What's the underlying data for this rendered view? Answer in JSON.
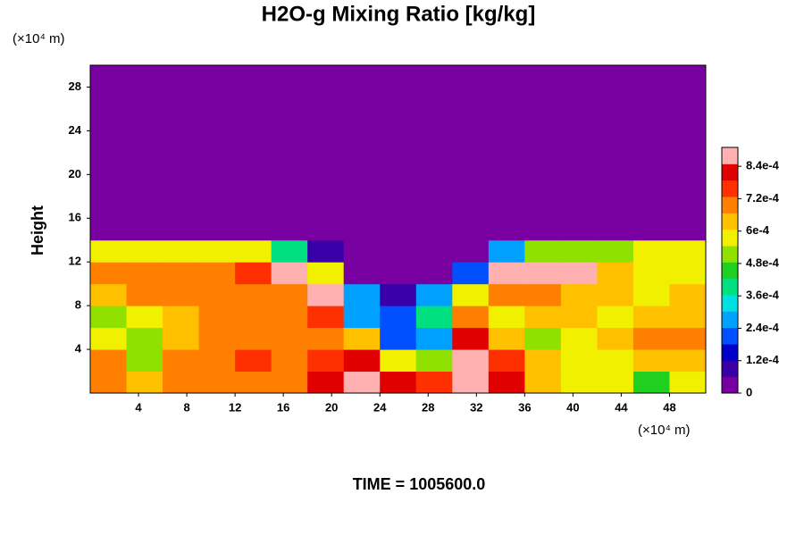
{
  "chart_data": {
    "type": "heatmap",
    "title": "H2O-g Mixing Ratio [kg/kg]",
    "ylabel": "Height",
    "xunit": "(×10⁴ m)",
    "yunit": "(×10⁴ m)",
    "footer": "TIME = 1005600.0",
    "xlim": [
      0,
      51
    ],
    "ylim": [
      0,
      30
    ],
    "xticks": [
      4,
      8,
      12,
      16,
      20,
      24,
      28,
      32,
      36,
      40,
      44,
      48
    ],
    "yticks": [
      4,
      8,
      12,
      16,
      20,
      24,
      28
    ],
    "x": [
      0,
      3,
      6,
      9,
      12,
      15,
      18,
      21,
      24,
      27,
      30,
      33,
      36,
      39,
      42,
      45,
      48,
      51
    ],
    "y": [
      0,
      2,
      4,
      6,
      8,
      10,
      12,
      14,
      16,
      18,
      20,
      22,
      24,
      26,
      28,
      30
    ],
    "z": [
      [
        0.0007,
        0.00065,
        0.0007,
        0.0007,
        0.0007,
        0.0007,
        0.0008,
        0.0009,
        0.0008,
        0.00075,
        0.00085,
        0.0008,
        0.00065,
        0.0006,
        0.00055,
        0.00045,
        0.0006
      ],
      [
        0.0007,
        0.0005,
        0.0007,
        0.0007,
        0.00075,
        0.0007,
        0.00075,
        0.0008,
        0.0006,
        0.0005,
        0.00085,
        0.00075,
        0.00065,
        0.00055,
        0.0006,
        0.00065,
        0.00065
      ],
      [
        0.0006,
        0.0005,
        0.00065,
        0.0007,
        0.0007,
        0.0007,
        0.0007,
        0.00065,
        0.0002,
        0.0003,
        0.0008,
        0.00065,
        0.0005,
        0.0006,
        0.00065,
        0.0007,
        0.0007
      ],
      [
        0.0005,
        0.0006,
        0.00065,
        0.0007,
        0.0007,
        0.0007,
        0.00075,
        0.0003,
        0.0002,
        0.0004,
        0.0007,
        0.0006,
        0.00065,
        0.00065,
        0.0006,
        0.00065,
        0.00065
      ],
      [
        0.00065,
        0.0007,
        0.0007,
        0.0007,
        0.0007,
        0.0007,
        0.0009,
        0.00025,
        0.0001,
        0.00025,
        0.00055,
        0.0007,
        0.0007,
        0.00065,
        0.00065,
        0.0006,
        0.00065
      ],
      [
        0.0007,
        0.0007,
        0.0007,
        0.0007,
        0.00075,
        0.0009,
        0.0006,
        5e-05,
        5e-05,
        5e-05,
        0.0002,
        0.0009,
        0.0009,
        0.0009,
        0.00065,
        0.0006,
        0.0006
      ],
      [
        0.00055,
        0.00055,
        0.00055,
        0.00055,
        0.00055,
        0.0004,
        0.0001,
        0,
        0,
        5e-05,
        5e-05,
        0.0003,
        0.0005,
        0.0005,
        0.0005,
        0.00055,
        0.00055
      ],
      [
        0,
        0,
        0,
        0,
        0,
        0,
        0,
        0,
        0,
        0,
        0,
        0,
        0,
        0,
        0,
        0,
        0
      ],
      [
        0,
        0,
        0,
        0,
        0,
        0,
        0,
        0,
        0,
        0,
        0,
        0,
        0,
        0,
        0,
        0,
        0
      ],
      [
        0,
        0,
        0,
        0,
        0,
        0,
        0,
        0,
        0,
        0,
        0,
        0,
        0,
        0,
        0,
        0,
        0
      ],
      [
        0,
        0,
        0,
        0,
        0,
        0,
        0,
        0,
        0,
        0,
        0,
        0,
        0,
        0,
        0,
        0,
        0
      ],
      [
        0,
        0,
        0,
        0,
        0,
        0,
        0,
        0,
        0,
        0,
        0,
        0,
        0,
        0,
        0,
        0,
        0
      ],
      [
        0,
        0,
        0,
        0,
        0,
        0,
        0,
        0,
        0,
        0,
        0,
        0,
        0,
        0,
        0,
        0,
        0
      ],
      [
        0,
        0,
        0,
        0,
        0,
        0,
        0,
        0,
        0,
        0,
        0,
        0,
        0,
        0,
        0,
        0,
        0
      ],
      [
        0,
        0,
        0,
        0,
        0,
        0,
        0,
        0,
        0,
        0,
        0,
        0,
        0,
        0,
        0,
        0,
        0
      ]
    ],
    "clim": [
      0,
      0.00091
    ],
    "cticks": [
      0,
      {
        "value": 0.00012,
        "label": "1.2e-4"
      },
      {
        "value": 0.00024,
        "label": "2.4e-4"
      },
      {
        "value": 0.00036,
        "label": "3.6e-4"
      },
      {
        "value": 0.00048,
        "label": "4.8e-4"
      },
      {
        "value": 0.0006,
        "label": "6e-4"
      },
      {
        "value": 0.00072,
        "label": "7.2e-4"
      },
      {
        "value": 0.00084,
        "label": "8.4e-4"
      }
    ],
    "colormap": [
      "#7800a0",
      "#3a00a8",
      "#0000c8",
      "#0050ff",
      "#00a0ff",
      "#00e0e0",
      "#00e080",
      "#20d020",
      "#90e000",
      "#f0f000",
      "#ffc000",
      "#ff8000",
      "#ff3000",
      "#e00000",
      "#ffb0b0"
    ]
  }
}
